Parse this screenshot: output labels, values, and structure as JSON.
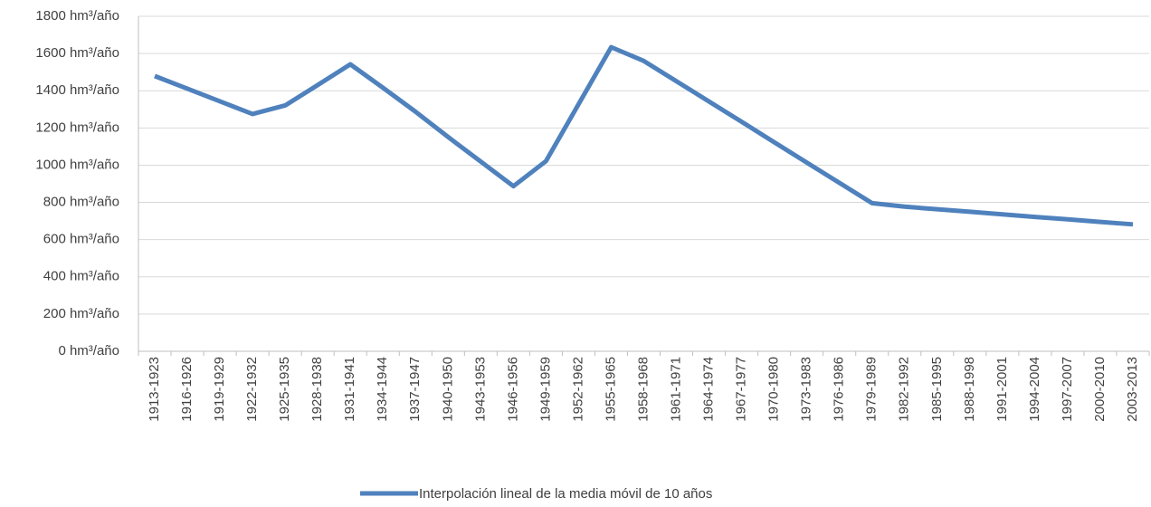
{
  "chart_data": {
    "type": "line",
    "categories": [
      "1913-1923",
      "1916-1926",
      "1919-1929",
      "1922-1932",
      "1925-1935",
      "1928-1938",
      "1931-1941",
      "1934-1944",
      "1937-1947",
      "1940-1950",
      "1943-1953",
      "1946-1956",
      "1949-1959",
      "1952-1962",
      "1955-1965",
      "1958-1968",
      "1961-1971",
      "1964-1974",
      "1967-1977",
      "1970-1980",
      "1973-1983",
      "1976-1986",
      "1979-1989",
      "1982-1992",
      "1985-1995",
      "1988-1998",
      "1991-2001",
      "1994-2004",
      "1997-2007",
      "2000-2010",
      "2003-2013"
    ],
    "series": [
      {
        "name": "Interpolación lineal de la media móvil de 10 años",
        "color": "#4f81bd",
        "values": [
          1479,
          1411,
          1343,
          1275,
          1321,
          1431,
          1542,
          1416,
          1287,
          1151,
          1019,
          887,
          1022,
          1328,
          1634,
          1560,
          1451,
          1342,
          1233,
          1123,
          1014,
          905,
          796,
          777,
          763,
          750,
          736,
          722,
          709,
          695,
          682
        ]
      }
    ],
    "ylim": [
      0,
      1800
    ],
    "yticks": [
      {
        "value": 0,
        "label": "0 hm³/año"
      },
      {
        "value": 200,
        "label": "200 hm³/año"
      },
      {
        "value": 400,
        "label": "400 hm³/año"
      },
      {
        "value": 600,
        "label": "600 hm³/año"
      },
      {
        "value": 800,
        "label": "800 hm³/año"
      },
      {
        "value": 1000,
        "label": "1000 hm³/año"
      },
      {
        "value": 1200,
        "label": "1200 hm³/año"
      },
      {
        "value": 1400,
        "label": "1400 hm³/año"
      },
      {
        "value": 1600,
        "label": "1600 hm³/año"
      },
      {
        "value": 1800,
        "label": "1800 hm³/año"
      }
    ],
    "grid": true,
    "legend": "bottom"
  }
}
